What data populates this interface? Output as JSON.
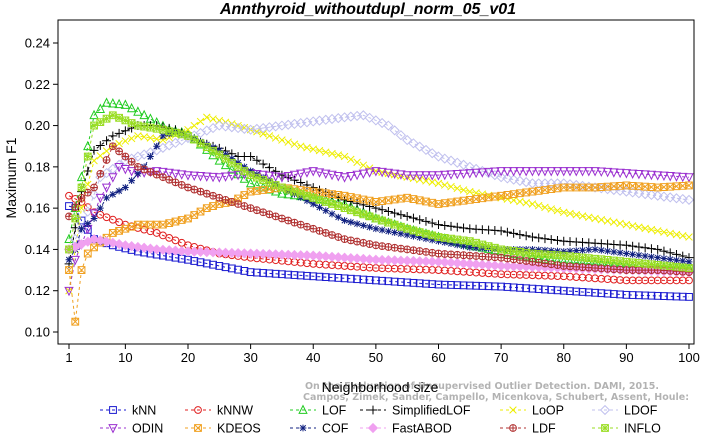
{
  "chart_data": {
    "type": "line",
    "title": "Annthyroid_withoutdupl_norm_05_v01",
    "xlabel": "Neighborhood size",
    "ylabel": "Maximum F1",
    "xlim": [
      1,
      100
    ],
    "ylim": [
      0.1,
      0.245
    ],
    "x_ticks": [
      1,
      10,
      20,
      30,
      40,
      50,
      60,
      70,
      80,
      90,
      100
    ],
    "x_tick_labels": [
      "1",
      "10",
      "20",
      "30",
      "40",
      "50",
      "60",
      "70",
      "80",
      "90",
      "100"
    ],
    "y_ticks": [
      0.1,
      0.12,
      0.14,
      0.16,
      0.18,
      0.2,
      0.22,
      0.24
    ],
    "y_tick_labels": [
      "0.10",
      "0.12",
      "0.14",
      "0.16",
      "0.18",
      "0.20",
      "0.22",
      "0.24"
    ],
    "grid": false,
    "legend_position": "bottom",
    "watermark": [
      "Campos, Zimek, Sander, Campello, Micenkova, Schubert, Assent, Houle:",
      "On the Evaluation of Unsupervised Outlier Detection. DAMI, 2015."
    ],
    "series": [
      {
        "name": "kNN",
        "color": "#1a1ad0",
        "marker": "square",
        "keypoints": [
          [
            1,
            0.161
          ],
          [
            2,
            0.16
          ],
          [
            3,
            0.154
          ],
          [
            5,
            0.145
          ],
          [
            8,
            0.142
          ],
          [
            12,
            0.139
          ],
          [
            20,
            0.135
          ],
          [
            25,
            0.132
          ],
          [
            30,
            0.129
          ],
          [
            40,
            0.127
          ],
          [
            50,
            0.125
          ],
          [
            60,
            0.123
          ],
          [
            70,
            0.122
          ],
          [
            80,
            0.12
          ],
          [
            90,
            0.118
          ],
          [
            100,
            0.117
          ]
        ]
      },
      {
        "name": "kNNW",
        "color": "#e02020",
        "marker": "circle",
        "keypoints": [
          [
            1,
            0.166
          ],
          [
            3,
            0.163
          ],
          [
            5,
            0.158
          ],
          [
            10,
            0.152
          ],
          [
            15,
            0.148
          ],
          [
            20,
            0.142
          ],
          [
            25,
            0.138
          ],
          [
            30,
            0.136
          ],
          [
            40,
            0.133
          ],
          [
            50,
            0.131
          ],
          [
            60,
            0.13
          ],
          [
            70,
            0.128
          ],
          [
            80,
            0.127
          ],
          [
            90,
            0.125
          ],
          [
            100,
            0.125
          ]
        ]
      },
      {
        "name": "LOF",
        "color": "#22cc22",
        "marker": "triangle-up",
        "keypoints": [
          [
            1,
            0.145
          ],
          [
            3,
            0.175
          ],
          [
            5,
            0.205
          ],
          [
            7,
            0.211
          ],
          [
            10,
            0.21
          ],
          [
            13,
            0.205
          ],
          [
            17,
            0.198
          ],
          [
            20,
            0.196
          ],
          [
            25,
            0.183
          ],
          [
            30,
            0.172
          ],
          [
            35,
            0.167
          ],
          [
            40,
            0.165
          ],
          [
            45,
            0.162
          ],
          [
            50,
            0.155
          ],
          [
            55,
            0.15
          ],
          [
            60,
            0.146
          ],
          [
            65,
            0.142
          ],
          [
            70,
            0.139
          ],
          [
            75,
            0.136
          ],
          [
            80,
            0.134
          ],
          [
            90,
            0.132
          ],
          [
            100,
            0.131
          ]
        ]
      },
      {
        "name": "SimplifiedLOF",
        "color": "#000000",
        "marker": "plus",
        "keypoints": [
          [
            1,
            0.133
          ],
          [
            3,
            0.168
          ],
          [
            5,
            0.188
          ],
          [
            8,
            0.195
          ],
          [
            12,
            0.2
          ],
          [
            15,
            0.2
          ],
          [
            18,
            0.198
          ],
          [
            22,
            0.192
          ],
          [
            25,
            0.189
          ],
          [
            28,
            0.185
          ],
          [
            30,
            0.185
          ],
          [
            35,
            0.176
          ],
          [
            40,
            0.17
          ],
          [
            45,
            0.164
          ],
          [
            50,
            0.16
          ],
          [
            55,
            0.156
          ],
          [
            60,
            0.152
          ],
          [
            65,
            0.15
          ],
          [
            70,
            0.149
          ],
          [
            75,
            0.146
          ],
          [
            80,
            0.144
          ],
          [
            85,
            0.143
          ],
          [
            90,
            0.142
          ],
          [
            95,
            0.14
          ],
          [
            100,
            0.136
          ]
        ]
      },
      {
        "name": "LoOP",
        "color": "#eeee00",
        "marker": "cross",
        "keypoints": [
          [
            1,
            0.12
          ],
          [
            3,
            0.16
          ],
          [
            5,
            0.183
          ],
          [
            8,
            0.19
          ],
          [
            12,
            0.195
          ],
          [
            16,
            0.193
          ],
          [
            20,
            0.198
          ],
          [
            23,
            0.204
          ],
          [
            28,
            0.2
          ],
          [
            32,
            0.196
          ],
          [
            38,
            0.19
          ],
          [
            45,
            0.185
          ],
          [
            50,
            0.178
          ],
          [
            55,
            0.175
          ],
          [
            60,
            0.172
          ],
          [
            65,
            0.168
          ],
          [
            70,
            0.165
          ],
          [
            75,
            0.162
          ],
          [
            80,
            0.158
          ],
          [
            85,
            0.155
          ],
          [
            90,
            0.152
          ],
          [
            95,
            0.149
          ],
          [
            100,
            0.146
          ]
        ]
      },
      {
        "name": "LDOF",
        "color": "#c0c0ee",
        "marker": "diamond",
        "keypoints": [
          [
            1,
            0.14
          ],
          [
            3,
            0.15
          ],
          [
            6,
            0.175
          ],
          [
            10,
            0.183
          ],
          [
            15,
            0.188
          ],
          [
            20,
            0.194
          ],
          [
            25,
            0.2
          ],
          [
            30,
            0.198
          ],
          [
            35,
            0.2
          ],
          [
            40,
            0.202
          ],
          [
            45,
            0.204
          ],
          [
            48,
            0.205
          ],
          [
            52,
            0.2
          ],
          [
            55,
            0.193
          ],
          [
            60,
            0.185
          ],
          [
            65,
            0.18
          ],
          [
            70,
            0.175
          ],
          [
            75,
            0.172
          ],
          [
            80,
            0.172
          ],
          [
            85,
            0.17
          ],
          [
            90,
            0.168
          ],
          [
            95,
            0.166
          ],
          [
            100,
            0.164
          ]
        ]
      },
      {
        "name": "ODIN",
        "color": "#9b30d0",
        "marker": "triangle-down",
        "keypoints": [
          [
            1,
            0.12
          ],
          [
            2,
            0.135
          ],
          [
            4,
            0.15
          ],
          [
            6,
            0.165
          ],
          [
            9,
            0.18
          ],
          [
            12,
            0.177
          ],
          [
            15,
            0.178
          ],
          [
            20,
            0.176
          ],
          [
            25,
            0.175
          ],
          [
            30,
            0.177
          ],
          [
            35,
            0.175
          ],
          [
            40,
            0.178
          ],
          [
            45,
            0.175
          ],
          [
            50,
            0.178
          ],
          [
            55,
            0.176
          ],
          [
            60,
            0.176
          ],
          [
            65,
            0.177
          ],
          [
            70,
            0.178
          ],
          [
            75,
            0.178
          ],
          [
            80,
            0.178
          ],
          [
            85,
            0.178
          ],
          [
            90,
            0.177
          ],
          [
            95,
            0.176
          ],
          [
            100,
            0.175
          ]
        ]
      },
      {
        "name": "KDEOS",
        "color": "#f0a020",
        "marker": "square-x",
        "keypoints": [
          [
            1,
            0.13
          ],
          [
            2,
            0.105
          ],
          [
            3,
            0.13
          ],
          [
            4,
            0.138
          ],
          [
            5,
            0.141
          ],
          [
            8,
            0.148
          ],
          [
            12,
            0.152
          ],
          [
            16,
            0.152
          ],
          [
            20,
            0.155
          ],
          [
            23,
            0.16
          ],
          [
            25,
            0.162
          ],
          [
            27,
            0.163
          ],
          [
            30,
            0.168
          ],
          [
            35,
            0.17
          ],
          [
            40,
            0.168
          ],
          [
            45,
            0.166
          ],
          [
            50,
            0.163
          ],
          [
            55,
            0.165
          ],
          [
            60,
            0.162
          ],
          [
            65,
            0.164
          ],
          [
            70,
            0.166
          ],
          [
            75,
            0.168
          ],
          [
            80,
            0.17
          ],
          [
            85,
            0.17
          ],
          [
            90,
            0.171
          ],
          [
            95,
            0.17
          ],
          [
            100,
            0.171
          ]
        ]
      },
      {
        "name": "COF",
        "color": "#102080",
        "marker": "asterisk",
        "keypoints": [
          [
            1,
            0.135
          ],
          [
            2,
            0.14
          ],
          [
            3,
            0.15
          ],
          [
            5,
            0.155
          ],
          [
            7,
            0.165
          ],
          [
            10,
            0.17
          ],
          [
            13,
            0.18
          ],
          [
            16,
            0.195
          ],
          [
            18,
            0.197
          ],
          [
            20,
            0.195
          ],
          [
            25,
            0.188
          ],
          [
            30,
            0.178
          ],
          [
            35,
            0.17
          ],
          [
            40,
            0.162
          ],
          [
            45,
            0.154
          ],
          [
            50,
            0.15
          ],
          [
            55,
            0.147
          ],
          [
            60,
            0.144
          ],
          [
            65,
            0.141
          ],
          [
            70,
            0.14
          ],
          [
            75,
            0.14
          ],
          [
            80,
            0.139
          ],
          [
            85,
            0.14
          ],
          [
            90,
            0.138
          ],
          [
            95,
            0.136
          ],
          [
            100,
            0.134
          ]
        ]
      },
      {
        "name": "FastABOD",
        "color": "#f0a0f0",
        "marker": "diamond-filled",
        "keypoints": [
          [
            1,
            0.14
          ],
          [
            5,
            0.145
          ],
          [
            10,
            0.142
          ],
          [
            15,
            0.14
          ],
          [
            20,
            0.139
          ],
          [
            30,
            0.138
          ],
          [
            40,
            0.137
          ],
          [
            50,
            0.135
          ],
          [
            60,
            0.134
          ],
          [
            70,
            0.132
          ],
          [
            80,
            0.131
          ],
          [
            90,
            0.13
          ],
          [
            100,
            0.129
          ]
        ]
      },
      {
        "name": "LDF",
        "color": "#b03030",
        "marker": "circle-plus",
        "keypoints": [
          [
            1,
            0.156
          ],
          [
            3,
            0.165
          ],
          [
            5,
            0.17
          ],
          [
            8,
            0.19
          ],
          [
            12,
            0.18
          ],
          [
            16,
            0.175
          ],
          [
            20,
            0.17
          ],
          [
            25,
            0.165
          ],
          [
            30,
            0.16
          ],
          [
            35,
            0.155
          ],
          [
            40,
            0.15
          ],
          [
            45,
            0.145
          ],
          [
            50,
            0.142
          ],
          [
            55,
            0.14
          ],
          [
            60,
            0.138
          ],
          [
            65,
            0.137
          ],
          [
            70,
            0.136
          ],
          [
            75,
            0.134
          ],
          [
            80,
            0.132
          ],
          [
            85,
            0.131
          ],
          [
            90,
            0.13
          ],
          [
            95,
            0.13
          ],
          [
            100,
            0.129
          ]
        ]
      },
      {
        "name": "INFLO",
        "color": "#99dd22",
        "marker": "star-box",
        "keypoints": [
          [
            1,
            0.14
          ],
          [
            3,
            0.17
          ],
          [
            5,
            0.2
          ],
          [
            8,
            0.205
          ],
          [
            12,
            0.2
          ],
          [
            16,
            0.198
          ],
          [
            20,
            0.195
          ],
          [
            25,
            0.186
          ],
          [
            30,
            0.176
          ],
          [
            35,
            0.17
          ],
          [
            40,
            0.165
          ],
          [
            45,
            0.16
          ],
          [
            50,
            0.155
          ],
          [
            55,
            0.15
          ],
          [
            60,
            0.146
          ],
          [
            65,
            0.144
          ],
          [
            70,
            0.14
          ],
          [
            75,
            0.138
          ],
          [
            80,
            0.137
          ],
          [
            90,
            0.134
          ],
          [
            100,
            0.131
          ]
        ]
      }
    ]
  }
}
